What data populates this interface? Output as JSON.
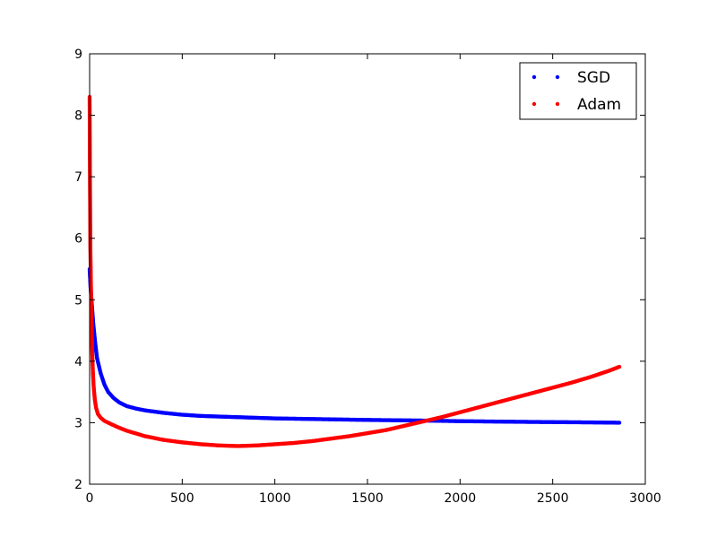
{
  "chart_data": {
    "type": "scatter",
    "title": "",
    "xlabel": "",
    "ylabel": "",
    "xlim": [
      0,
      3000
    ],
    "ylim": [
      2,
      9
    ],
    "xticks": [
      "0",
      "500",
      "1000",
      "1500",
      "2000",
      "2500",
      "3000"
    ],
    "yticks": [
      "2",
      "3",
      "4",
      "5",
      "6",
      "7",
      "8",
      "9"
    ],
    "grid": false,
    "legend_position": "top-right",
    "series": [
      {
        "name": "SGD",
        "color": "#0000ff",
        "points": [
          [
            0,
            5.5
          ],
          [
            5,
            5.2
          ],
          [
            10,
            5.0
          ],
          [
            20,
            4.6
          ],
          [
            30,
            4.3
          ],
          [
            40,
            4.05
          ],
          [
            60,
            3.8
          ],
          [
            80,
            3.62
          ],
          [
            100,
            3.5
          ],
          [
            130,
            3.4
          ],
          [
            160,
            3.33
          ],
          [
            200,
            3.27
          ],
          [
            250,
            3.23
          ],
          [
            300,
            3.2
          ],
          [
            400,
            3.16
          ],
          [
            500,
            3.13
          ],
          [
            600,
            3.11
          ],
          [
            700,
            3.1
          ],
          [
            800,
            3.09
          ],
          [
            1000,
            3.07
          ],
          [
            1200,
            3.06
          ],
          [
            1500,
            3.045
          ],
          [
            1800,
            3.035
          ],
          [
            2000,
            3.025
          ],
          [
            2300,
            3.015
          ],
          [
            2500,
            3.01
          ],
          [
            2700,
            3.005
          ],
          [
            2860,
            3.0
          ]
        ]
      },
      {
        "name": "Adam",
        "color": "#ff0000",
        "points": [
          [
            0,
            8.3
          ],
          [
            1,
            7.6
          ],
          [
            2,
            6.92
          ],
          [
            3,
            6.36
          ],
          [
            4,
            5.87
          ],
          [
            6,
            5.45
          ],
          [
            8,
            5.1
          ],
          [
            10,
            4.8
          ],
          [
            12,
            4.4
          ],
          [
            15,
            4.05
          ],
          [
            18,
            3.8
          ],
          [
            22,
            3.58
          ],
          [
            28,
            3.38
          ],
          [
            35,
            3.24
          ],
          [
            45,
            3.14
          ],
          [
            60,
            3.08
          ],
          [
            80,
            3.03
          ],
          [
            100,
            3.0
          ],
          [
            150,
            2.93
          ],
          [
            200,
            2.87
          ],
          [
            300,
            2.78
          ],
          [
            400,
            2.72
          ],
          [
            500,
            2.68
          ],
          [
            600,
            2.65
          ],
          [
            700,
            2.63
          ],
          [
            800,
            2.62
          ],
          [
            900,
            2.63
          ],
          [
            1000,
            2.65
          ],
          [
            1100,
            2.67
          ],
          [
            1200,
            2.7
          ],
          [
            1300,
            2.74
          ],
          [
            1400,
            2.78
          ],
          [
            1500,
            2.83
          ],
          [
            1600,
            2.88
          ],
          [
            1700,
            2.95
          ],
          [
            1800,
            3.02
          ],
          [
            1900,
            3.09
          ],
          [
            2000,
            3.17
          ],
          [
            2100,
            3.25
          ],
          [
            2200,
            3.33
          ],
          [
            2300,
            3.41
          ],
          [
            2400,
            3.49
          ],
          [
            2500,
            3.57
          ],
          [
            2600,
            3.65
          ],
          [
            2700,
            3.74
          ],
          [
            2800,
            3.84
          ],
          [
            2860,
            3.91
          ]
        ]
      }
    ]
  }
}
